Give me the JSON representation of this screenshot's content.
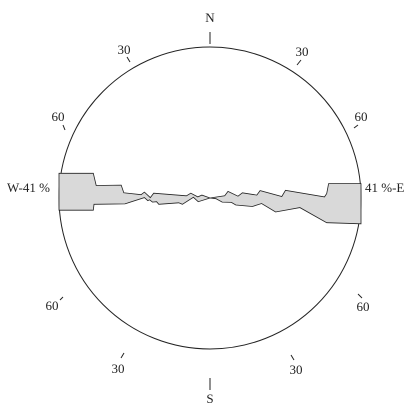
{
  "chart_data": {
    "type": "rose",
    "title": "",
    "axis": "bidirectional",
    "range_label": "41 %",
    "compass": {
      "north": "N",
      "south": "S",
      "west": "W-41 %",
      "east": "41 %-E"
    },
    "ring_tick_labels": {
      "upper_right": [
        "30",
        "60"
      ],
      "upper_left": [
        "30",
        "60"
      ],
      "lower_right": [
        "30",
        "60"
      ],
      "lower_left": [
        "30",
        "60"
      ]
    },
    "profile_max_value": 41,
    "profile_upper": [
      [
        -41,
        6.7
      ],
      [
        -31.7,
        6.7
      ],
      [
        -30.9,
        3.4
      ],
      [
        -24.1,
        3.5
      ],
      [
        -23.4,
        1.4
      ],
      [
        -18.7,
        0.9
      ],
      [
        -17.8,
        1.6
      ],
      [
        -16.2,
        0.1
      ],
      [
        -15.3,
        1.3
      ],
      [
        -6.4,
        0.6
      ],
      [
        -5.2,
        1.3
      ],
      [
        -3.3,
        0.3
      ],
      [
        -2.2,
        0.8
      ],
      [
        0,
        0
      ],
      [
        4.0,
        0.6
      ],
      [
        4.9,
        1.8
      ],
      [
        7.6,
        0.5
      ],
      [
        8.8,
        1.4
      ],
      [
        12.7,
        0.8
      ],
      [
        13.6,
        2.0
      ],
      [
        19.5,
        0.4
      ],
      [
        20.5,
        2.1
      ],
      [
        31.1,
        0.3
      ],
      [
        31.7,
        1.2
      ],
      [
        32.2,
        3.9
      ],
      [
        41,
        3.9
      ]
    ],
    "profile_lower": [
      [
        -41,
        -3.3
      ],
      [
        -31.7,
        -3.3
      ],
      [
        -31.5,
        -1.7
      ],
      [
        -23.1,
        -1.6
      ],
      [
        -17.8,
        0.1
      ],
      [
        -16.9,
        -0.7
      ],
      [
        -16.4,
        -0.5
      ],
      [
        -15.6,
        -1.1
      ],
      [
        -14.5,
        -1.0
      ],
      [
        -13.9,
        -1.7
      ],
      [
        -8.5,
        -1.3
      ],
      [
        -7.5,
        -1.7
      ],
      [
        -4.5,
        0.2
      ],
      [
        -3.2,
        -1.0
      ],
      [
        0,
        0
      ],
      [
        1.6,
        -0.2
      ],
      [
        3.3,
        -1.1
      ],
      [
        5.8,
        -1.2
      ],
      [
        7.0,
        -1.9
      ],
      [
        11.5,
        -2.3
      ],
      [
        14.0,
        -1.5
      ],
      [
        17.8,
        -3.8
      ],
      [
        24.4,
        -2.6
      ],
      [
        31.7,
        -6.7
      ],
      [
        41,
        -7.0
      ]
    ],
    "fill_color": "#d9d9d9",
    "stroke_color": "#222222"
  }
}
